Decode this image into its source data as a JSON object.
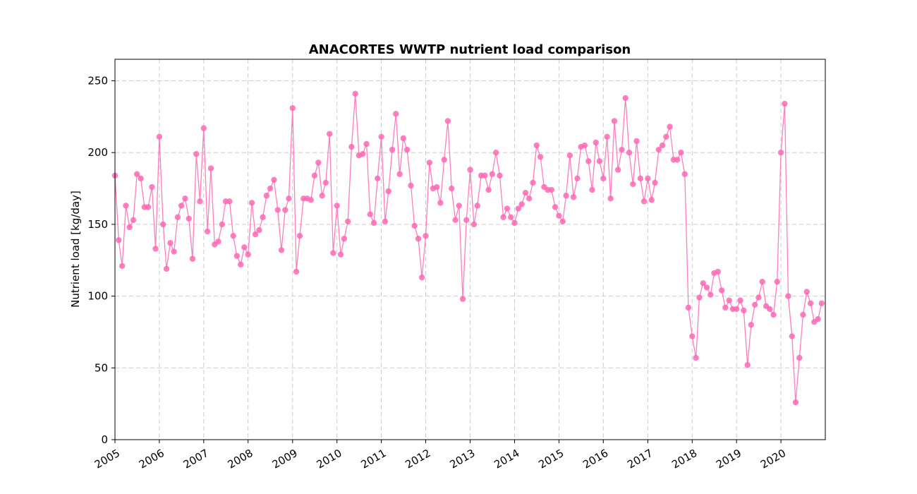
{
  "chart_data": {
    "type": "line",
    "title": "ANACORTES WWTP nutrient load comparison",
    "xlabel": "",
    "ylabel": "Nutrient load [kg/day]",
    "x_start": "2005-01",
    "x_step": "1 month",
    "xlim": [
      "2005-01-01",
      "2020-12-31"
    ],
    "ylim": [
      0,
      265
    ],
    "yticks": [
      0,
      50,
      100,
      150,
      200,
      250
    ],
    "xticks": [
      "2005",
      "2006",
      "2007",
      "2008",
      "2009",
      "2010",
      "2011",
      "2012",
      "2013",
      "2014",
      "2015",
      "2016",
      "2017",
      "2018",
      "2019",
      "2020"
    ],
    "grid": true,
    "color": "#ff69b4",
    "markers": true,
    "series": [
      {
        "name": "",
        "values": [
          184,
          139,
          121,
          163,
          148,
          153,
          185,
          182,
          162,
          162,
          176,
          133,
          211,
          150,
          119,
          137,
          131,
          155,
          163,
          168,
          154,
          126,
          199,
          166,
          217,
          145,
          189,
          136,
          138,
          150,
          166,
          166,
          142,
          128,
          122,
          134,
          129,
          165,
          143,
          146,
          155,
          170,
          175,
          181,
          160,
          132,
          160,
          168,
          231,
          117,
          142,
          168,
          168,
          167,
          184,
          193,
          170,
          179,
          213,
          130,
          163,
          129,
          140,
          152,
          204,
          241,
          198,
          199,
          206,
          157,
          151,
          182,
          211,
          152,
          173,
          202,
          227,
          185,
          210,
          202,
          177,
          149,
          140,
          113,
          142,
          193,
          175,
          176,
          165,
          195,
          222,
          175,
          153,
          163,
          98,
          153,
          188,
          150,
          163,
          184,
          184,
          174,
          185,
          200,
          184,
          155,
          161,
          155,
          151,
          161,
          164,
          172,
          168,
          179,
          205,
          197,
          176,
          174,
          174,
          162,
          156,
          152,
          170,
          198,
          169,
          182,
          204,
          205,
          194,
          174,
          207,
          194,
          182,
          211,
          168,
          222,
          188,
          202,
          238,
          200,
          178,
          208,
          182,
          166,
          182,
          167,
          179,
          202,
          205,
          211,
          218,
          195,
          195,
          200,
          185,
          92,
          72,
          57,
          99,
          109,
          106,
          101,
          116,
          117,
          104,
          92,
          97,
          91,
          91,
          97,
          90,
          52,
          80,
          94,
          99,
          110,
          93,
          91,
          87,
          110,
          200,
          234,
          100,
          72,
          26,
          57,
          87,
          103,
          95,
          82,
          84,
          95
        ]
      }
    ]
  }
}
